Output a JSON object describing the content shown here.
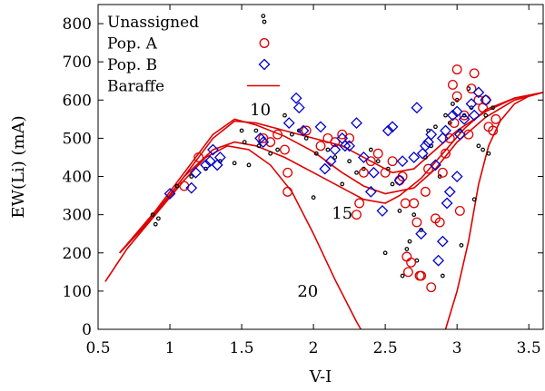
{
  "chart_data": {
    "type": "scatter",
    "xlabel": "V-I",
    "ylabel": "EW(Li) (mA)",
    "xlim": [
      0.5,
      3.6
    ],
    "ylim": [
      0,
      850
    ],
    "xticks": [
      0.5,
      1,
      1.5,
      2,
      2.5,
      3,
      3.5
    ],
    "yticks": [
      0,
      100,
      200,
      300,
      400,
      500,
      600,
      700,
      800
    ],
    "legend_position": "top-left",
    "series": [
      {
        "name": "Unassigned",
        "marker": "dot",
        "color": "#000000",
        "points": [
          [
            0.88,
            300
          ],
          [
            0.9,
            275
          ],
          [
            0.92,
            290
          ],
          [
            1.05,
            375
          ],
          [
            1.15,
            400
          ],
          [
            1.25,
            420
          ],
          [
            1.35,
            440
          ],
          [
            1.45,
            435
          ],
          [
            1.5,
            520
          ],
          [
            1.52,
            490
          ],
          [
            1.55,
            430
          ],
          [
            1.6,
            520
          ],
          [
            1.62,
            480
          ],
          [
            1.7,
            460
          ],
          [
            1.75,
            470
          ],
          [
            1.8,
            560
          ],
          [
            1.85,
            510
          ],
          [
            1.9,
            520
          ],
          [
            1.95,
            500
          ],
          [
            2.0,
            345
          ],
          [
            2.02,
            460
          ],
          [
            2.1,
            470
          ],
          [
            2.15,
            450
          ],
          [
            2.2,
            380
          ],
          [
            2.25,
            440
          ],
          [
            2.3,
            410
          ],
          [
            2.35,
            420
          ],
          [
            2.4,
            470
          ],
          [
            2.45,
            440
          ],
          [
            2.5,
            200
          ],
          [
            2.52,
            420
          ],
          [
            2.55,
            380
          ],
          [
            2.6,
            310
          ],
          [
            2.62,
            140
          ],
          [
            2.65,
            210
          ],
          [
            2.67,
            230
          ],
          [
            2.7,
            300
          ],
          [
            2.72,
            180
          ],
          [
            2.75,
            260
          ],
          [
            2.78,
            450
          ],
          [
            2.8,
            520
          ],
          [
            2.82,
            480
          ],
          [
            2.85,
            530
          ],
          [
            2.88,
            400
          ],
          [
            2.9,
            140
          ],
          [
            2.92,
            560
          ],
          [
            2.95,
            540
          ],
          [
            2.97,
            590
          ],
          [
            3.0,
            600
          ],
          [
            3.02,
            520
          ],
          [
            3.05,
            560
          ],
          [
            3.08,
            630
          ],
          [
            3.1,
            580
          ],
          [
            3.12,
            340
          ],
          [
            3.15,
            480
          ],
          [
            3.18,
            470
          ],
          [
            3.2,
            560
          ],
          [
            3.22,
            460
          ],
          [
            3.25,
            580
          ],
          [
            3.03,
            220
          ],
          [
            1.65,
            820
          ]
        ]
      },
      {
        "name": "Pop. A",
        "marker": "circle",
        "color": "#dd0000",
        "points": [
          [
            1.1,
            375
          ],
          [
            1.2,
            450
          ],
          [
            1.65,
            500
          ],
          [
            1.7,
            490
          ],
          [
            1.75,
            510
          ],
          [
            1.8,
            470
          ],
          [
            1.82,
            410
          ],
          [
            1.82,
            360
          ],
          [
            1.95,
            520
          ],
          [
            2.05,
            480
          ],
          [
            2.1,
            500
          ],
          [
            2.15,
            490
          ],
          [
            2.2,
            510
          ],
          [
            2.25,
            500
          ],
          [
            2.3,
            300
          ],
          [
            2.32,
            330
          ],
          [
            2.35,
            410
          ],
          [
            2.4,
            440
          ],
          [
            2.45,
            460
          ],
          [
            2.5,
            410
          ],
          [
            2.55,
            440
          ],
          [
            2.6,
            390
          ],
          [
            2.62,
            400
          ],
          [
            2.64,
            330
          ],
          [
            2.65,
            190
          ],
          [
            2.66,
            150
          ],
          [
            2.68,
            175
          ],
          [
            2.7,
            330
          ],
          [
            2.72,
            280
          ],
          [
            2.74,
            140
          ],
          [
            2.75,
            140
          ],
          [
            2.78,
            360
          ],
          [
            2.8,
            420
          ],
          [
            2.82,
            110
          ],
          [
            2.85,
            290
          ],
          [
            2.88,
            280
          ],
          [
            2.9,
            410
          ],
          [
            2.92,
            460
          ],
          [
            2.95,
            500
          ],
          [
            2.97,
            640
          ],
          [
            2.98,
            540
          ],
          [
            3.0,
            610
          ],
          [
            3.0,
            680
          ],
          [
            3.02,
            310
          ],
          [
            3.05,
            560
          ],
          [
            3.08,
            510
          ],
          [
            3.1,
            630
          ],
          [
            3.12,
            670
          ],
          [
            3.15,
            600
          ],
          [
            3.18,
            580
          ],
          [
            3.2,
            600
          ],
          [
            3.22,
            530
          ],
          [
            3.25,
            520
          ],
          [
            3.27,
            550
          ]
        ]
      },
      {
        "name": "Pop. B",
        "marker": "diamond",
        "color": "#0000cc",
        "points": [
          [
            1.0,
            355
          ],
          [
            1.15,
            370
          ],
          [
            1.18,
            410
          ],
          [
            1.25,
            430
          ],
          [
            1.28,
            440
          ],
          [
            1.3,
            470
          ],
          [
            1.33,
            430
          ],
          [
            1.35,
            450
          ],
          [
            1.63,
            500
          ],
          [
            1.65,
            490
          ],
          [
            1.83,
            540
          ],
          [
            1.88,
            605
          ],
          [
            1.9,
            580
          ],
          [
            1.93,
            520
          ],
          [
            2.05,
            530
          ],
          [
            2.08,
            420
          ],
          [
            2.12,
            440
          ],
          [
            2.15,
            470
          ],
          [
            2.2,
            500
          ],
          [
            2.22,
            480
          ],
          [
            2.25,
            480
          ],
          [
            2.3,
            540
          ],
          [
            2.35,
            450
          ],
          [
            2.4,
            360
          ],
          [
            2.42,
            410
          ],
          [
            2.48,
            310
          ],
          [
            2.52,
            520
          ],
          [
            2.55,
            530
          ],
          [
            2.6,
            390
          ],
          [
            2.62,
            440
          ],
          [
            2.7,
            450
          ],
          [
            2.72,
            580
          ],
          [
            2.75,
            250
          ],
          [
            2.76,
            460
          ],
          [
            2.78,
            480
          ],
          [
            2.8,
            490
          ],
          [
            2.82,
            510
          ],
          [
            2.85,
            430
          ],
          [
            2.87,
            180
          ],
          [
            2.9,
            500
          ],
          [
            2.92,
            520
          ],
          [
            2.95,
            360
          ],
          [
            2.97,
            560
          ],
          [
            3.0,
            570
          ],
          [
            3.02,
            510
          ],
          [
            3.05,
            550
          ],
          [
            3.1,
            590
          ],
          [
            3.12,
            560
          ],
          [
            3.2,
            600
          ],
          [
            3.15,
            620
          ],
          [
            2.9,
            230
          ],
          [
            2.93,
            330
          ],
          [
            3.0,
            400
          ]
        ]
      }
    ],
    "model": {
      "name": "Baraffe",
      "color": "#dd0000",
      "curves": [
        {
          "label": "10",
          "label_at": [
            1.63,
            560
          ],
          "points": [
            [
              0.55,
              125
            ],
            [
              0.7,
              210
            ],
            [
              0.9,
              300
            ],
            [
              1.1,
              400
            ],
            [
              1.3,
              500
            ],
            [
              1.45,
              545
            ],
            [
              1.6,
              540
            ],
            [
              1.8,
              520
            ],
            [
              2.0,
              500
            ],
            [
              2.2,
              480
            ],
            [
              2.4,
              440
            ],
            [
              2.55,
              410
            ],
            [
              2.7,
              420
            ],
            [
              2.85,
              470
            ],
            [
              3.0,
              520
            ],
            [
              3.2,
              570
            ],
            [
              3.4,
              605
            ],
            [
              3.6,
              620
            ]
          ]
        },
        {
          "label": "",
          "label_at": null,
          "points": [
            [
              0.65,
              200
            ],
            [
              0.9,
              310
            ],
            [
              1.1,
              410
            ],
            [
              1.3,
              510
            ],
            [
              1.45,
              550
            ],
            [
              1.6,
              535
            ],
            [
              1.8,
              505
            ],
            [
              2.0,
              465
            ],
            [
              2.2,
              410
            ],
            [
              2.35,
              375
            ],
            [
              2.5,
              355
            ],
            [
              2.7,
              370
            ],
            [
              2.85,
              420
            ],
            [
              3.0,
              490
            ],
            [
              3.2,
              555
            ],
            [
              3.4,
              600
            ],
            [
              3.6,
              620
            ]
          ]
        },
        {
          "label": "15",
          "label_at": [
            2.2,
            290
          ],
          "points": [
            [
              0.65,
              200
            ],
            [
              0.9,
              305
            ],
            [
              1.1,
              400
            ],
            [
              1.3,
              470
            ],
            [
              1.45,
              490
            ],
            [
              1.6,
              480
            ],
            [
              1.8,
              450
            ],
            [
              2.0,
              410
            ],
            [
              2.2,
              370
            ],
            [
              2.35,
              340
            ],
            [
              2.5,
              330
            ],
            [
              2.6,
              350
            ],
            [
              2.75,
              395
            ],
            [
              2.9,
              460
            ],
            [
              3.05,
              525
            ],
            [
              3.2,
              575
            ],
            [
              3.4,
              605
            ],
            [
              3.6,
              620
            ]
          ]
        },
        {
          "label": "20",
          "label_at": [
            1.96,
            85
          ],
          "points": [
            [
              0.65,
              200
            ],
            [
              0.9,
              300
            ],
            [
              1.1,
              390
            ],
            [
              1.25,
              450
            ],
            [
              1.4,
              480
            ],
            [
              1.55,
              470
            ],
            [
              1.7,
              430
            ],
            [
              1.85,
              360
            ],
            [
              2.0,
              250
            ],
            [
              2.15,
              130
            ],
            [
              2.3,
              20
            ],
            [
              2.33,
              0
            ]
          ]
        },
        {
          "label": "",
          "label_at": null,
          "points": [
            [
              2.92,
              0
            ],
            [
              3.0,
              100
            ],
            [
              3.08,
              230
            ],
            [
              3.15,
              380
            ],
            [
              3.22,
              480
            ],
            [
              3.3,
              545
            ],
            [
              3.4,
              590
            ],
            [
              3.5,
              610
            ],
            [
              3.6,
              620
            ]
          ]
        }
      ]
    }
  }
}
